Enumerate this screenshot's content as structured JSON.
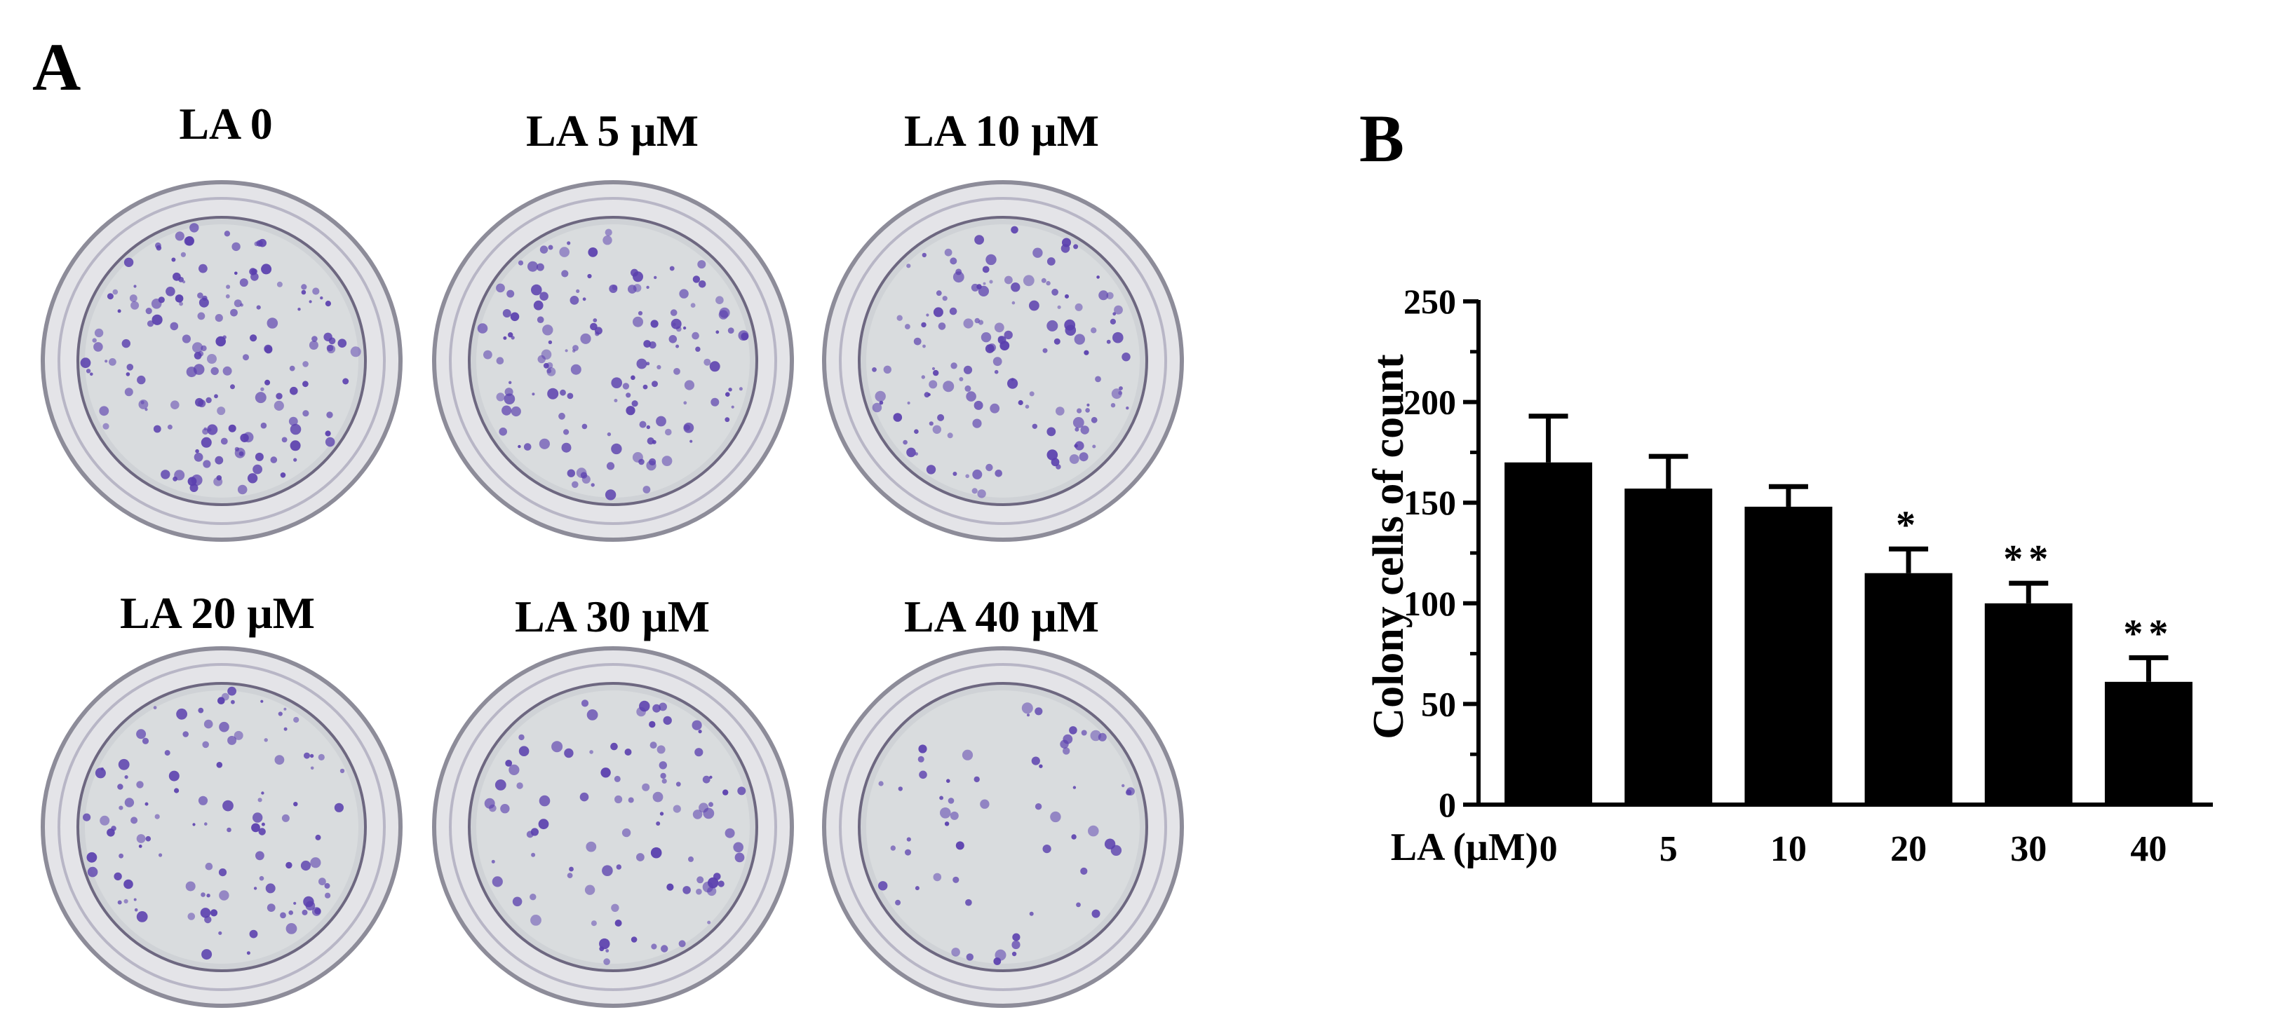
{
  "panel_a": {
    "letter": "A",
    "plates": [
      {
        "label": "LA 0",
        "density": 1.0
      },
      {
        "label": "LA 5 μM",
        "density": 0.92
      },
      {
        "label": "LA 10 μM",
        "density": 0.87
      },
      {
        "label": "LA 20 μM",
        "density": 0.68
      },
      {
        "label": "LA 30 μM",
        "density": 0.58
      },
      {
        "label": "LA 40 μM",
        "density": 0.36
      }
    ]
  },
  "panel_b": {
    "letter": "B"
  },
  "colors": {
    "bar": "#000000",
    "stain": "#5a3fae",
    "plate_rim": "#8d8c99",
    "plate_fill": "#cfd2d6"
  },
  "chart_data": {
    "type": "bar",
    "ylabel": "Colony cells of count",
    "xlabel": "LA (μM)",
    "categories": [
      "0",
      "5",
      "10",
      "20",
      "30",
      "40"
    ],
    "values": [
      170,
      157,
      148,
      115,
      100,
      61
    ],
    "errors": [
      23,
      16,
      10,
      12,
      10,
      12
    ],
    "significance": [
      "",
      "",
      "",
      "*",
      "**",
      "**"
    ],
    "ylim": [
      0,
      250
    ],
    "yticks": [
      0,
      50,
      100,
      150,
      200,
      250
    ],
    "grid": false
  }
}
